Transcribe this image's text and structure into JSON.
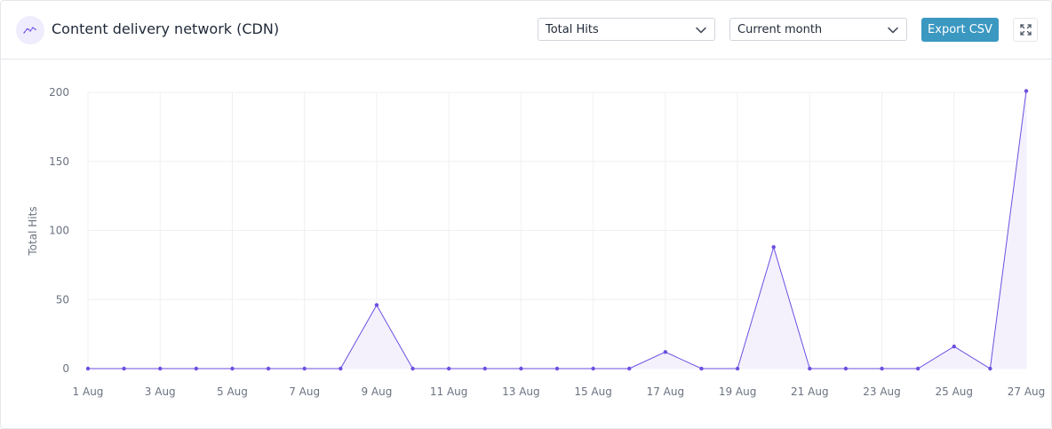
{
  "header": {
    "icon": "line-chart-icon",
    "title": "Content delivery network (CDN)",
    "metric_select": "Total Hits",
    "period_select": "Current month",
    "export_label": "Export CSV",
    "expand_icon": "fullscreen-icon"
  },
  "colors": {
    "accent": "#6d4fe0",
    "area_fill": "#f4f1fd",
    "export_button": "#3b98c0",
    "grid": "#f0f0f3"
  },
  "chart_data": {
    "type": "area",
    "ylabel": "Total Hits",
    "xlabel": "",
    "ylim": [
      0,
      200
    ],
    "yticks": [
      0,
      50,
      100,
      150,
      200
    ],
    "grid": true,
    "x": [
      "1 Aug",
      "2 Aug",
      "3 Aug",
      "4 Aug",
      "5 Aug",
      "6 Aug",
      "7 Aug",
      "8 Aug",
      "9 Aug",
      "10 Aug",
      "11 Aug",
      "12 Aug",
      "13 Aug",
      "14 Aug",
      "15 Aug",
      "16 Aug",
      "17 Aug",
      "18 Aug",
      "19 Aug",
      "20 Aug",
      "21 Aug",
      "22 Aug",
      "23 Aug",
      "24 Aug",
      "25 Aug",
      "26 Aug",
      "27 Aug"
    ],
    "xtick_labels": [
      "1 Aug",
      "",
      "3 Aug",
      "",
      "5 Aug",
      "",
      "7 Aug",
      "",
      "9 Aug",
      "",
      "11 Aug",
      "",
      "13 Aug",
      "",
      "15 Aug",
      "",
      "17 Aug",
      "",
      "19 Aug",
      "",
      "21 Aug",
      "",
      "23 Aug",
      "",
      "25 Aug",
      "",
      "27 Aug"
    ],
    "series": [
      {
        "values": [
          0,
          0,
          0,
          0,
          0,
          0,
          0,
          0,
          46,
          0,
          0,
          0,
          0,
          0,
          0,
          0,
          12,
          0,
          0,
          88,
          0,
          0,
          0,
          0,
          16,
          0,
          201
        ]
      }
    ]
  }
}
